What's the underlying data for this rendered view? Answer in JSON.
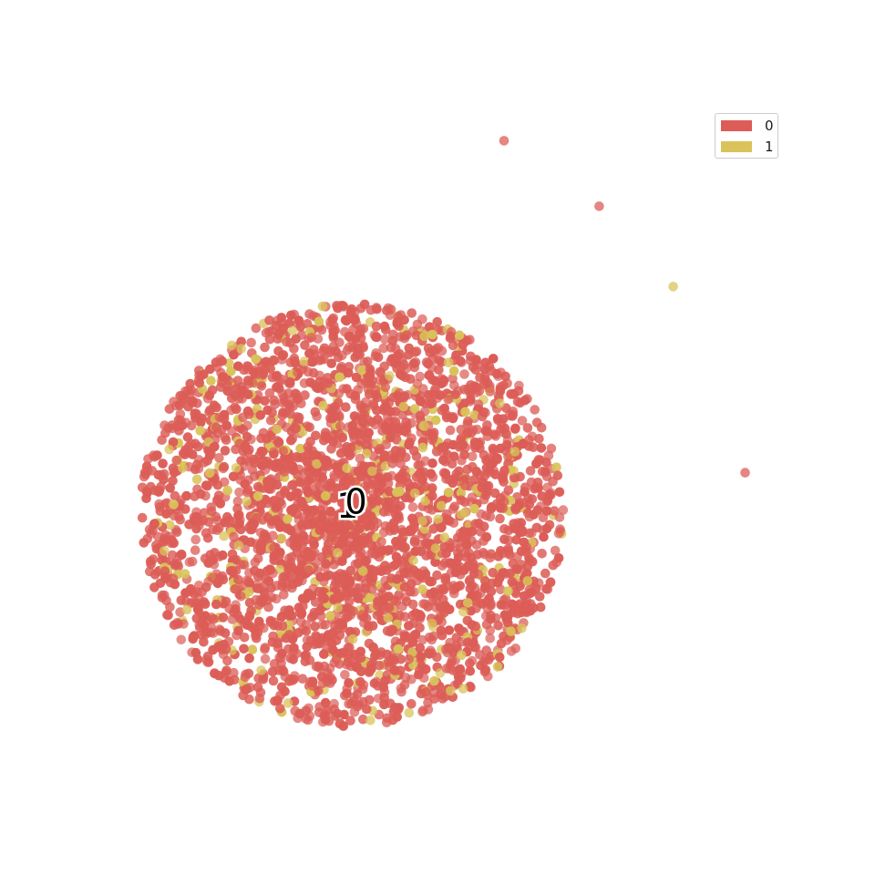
{
  "chart_data": {
    "type": "scatter",
    "title": "",
    "xlabel": "",
    "ylabel": "",
    "axes_visible": false,
    "grid": false,
    "legend_position": "top-right",
    "series": [
      {
        "name": "0",
        "color": "#dc5d57"
      },
      {
        "name": "1",
        "color": "#d9c35a"
      }
    ],
    "category_fraction": {
      "0": 0.9,
      "1": 0.1
    },
    "main_cluster": {
      "center": [
        0.0,
        0.0
      ],
      "radius": 1.0,
      "approx_points": 3200,
      "shape": "disk, densest at center"
    },
    "outlier_points": [
      {
        "x": 0.72,
        "y": 1.77,
        "series": "0"
      },
      {
        "x": 1.17,
        "y": 1.46,
        "series": "0"
      },
      {
        "x": 1.52,
        "y": 1.08,
        "series": "1"
      },
      {
        "x": 1.86,
        "y": 0.2,
        "series": "0"
      }
    ],
    "cluster_labels": [
      {
        "text": "1",
        "x": -0.02,
        "y": 0.0
      },
      {
        "text": "0",
        "x": 0.02,
        "y": 0.02
      }
    ]
  }
}
